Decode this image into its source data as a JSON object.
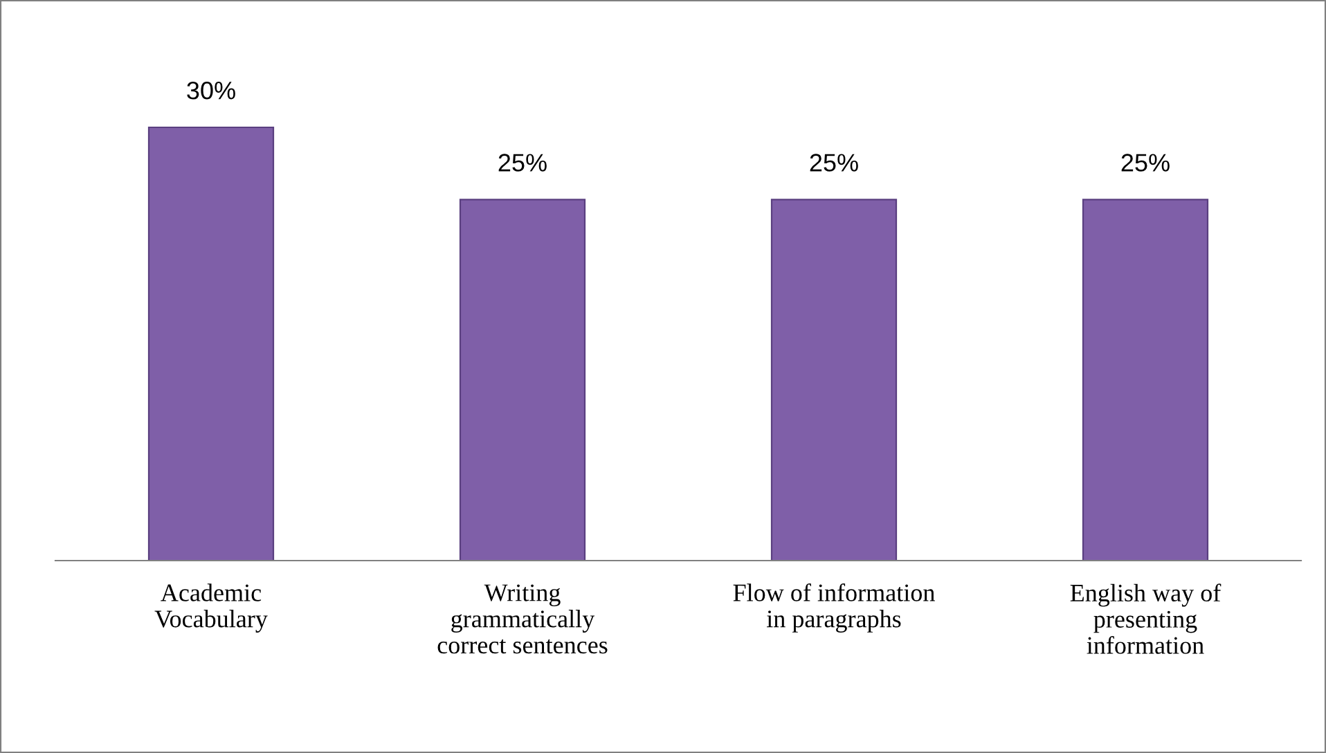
{
  "chart_data": {
    "type": "bar",
    "categories": [
      "Academic\nVocabulary",
      "Writing\ngrammatically\ncorrect sentences",
      "Flow of information\nin paragraphs",
      "English way of\npresenting\ninformation"
    ],
    "values": [
      30,
      25,
      25,
      25
    ],
    "value_labels": [
      "30%",
      "25%",
      "25%",
      "25%"
    ],
    "color": "#7f5fa8",
    "grid": false,
    "legend": false
  }
}
